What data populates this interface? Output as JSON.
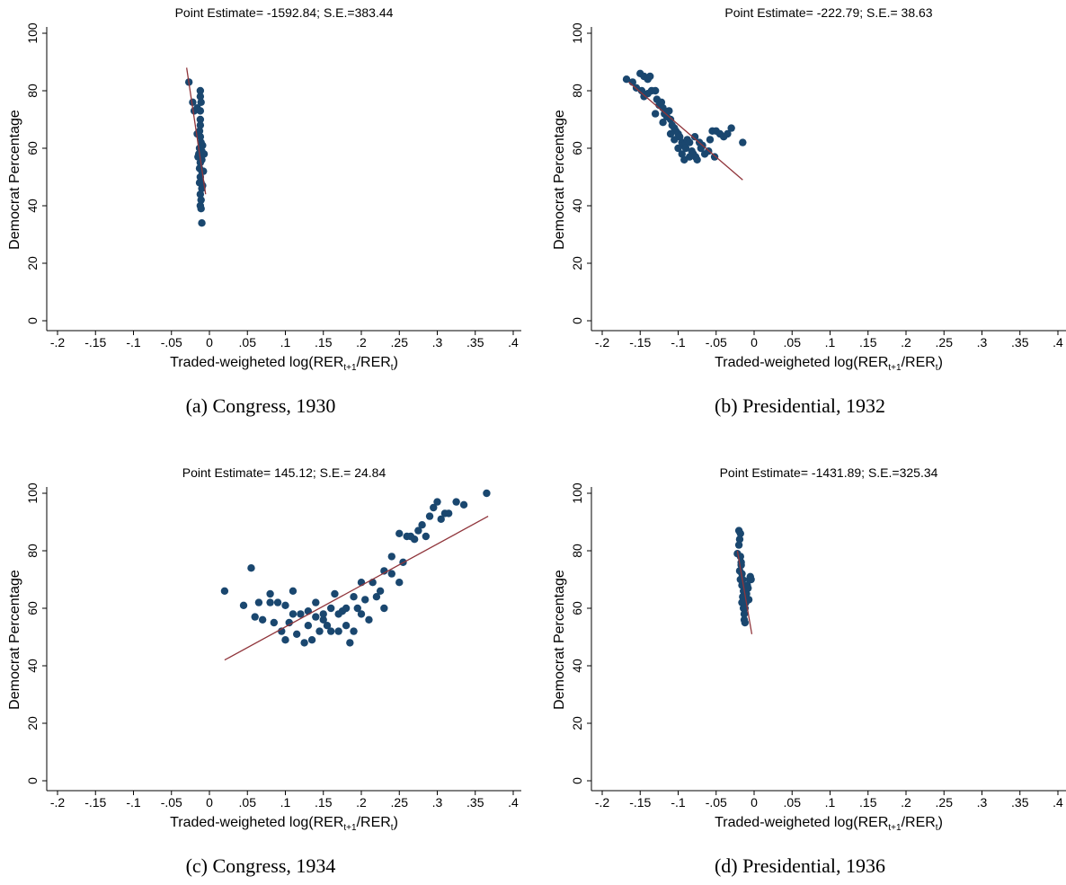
{
  "chart_data": [
    {
      "type": "scatter",
      "title": "Point Estimate= -1592.84; S.E.=383.44",
      "caption": "(a) Congress, 1930",
      "x_label": [
        "Traded-weigheted log(RER",
        "t+1",
        "/RER",
        "t",
        ")"
      ],
      "y_label": "Democrat Percentage",
      "xlim": [
        -0.2,
        0.4
      ],
      "ylim": [
        0,
        100
      ],
      "xticks": [
        {
          "value": -0.2,
          "label": "-.2"
        },
        {
          "value": -0.15,
          "label": "-.15"
        },
        {
          "value": -0.1,
          "label": "-.1"
        },
        {
          "value": -0.05,
          "label": "-.05"
        },
        0,
        {
          "value": 0.05,
          "label": ".05"
        },
        {
          "value": 0.1,
          "label": ".1"
        },
        {
          "value": 0.15,
          "label": ".15"
        },
        {
          "value": 0.2,
          "label": ".2"
        },
        {
          "value": 0.25,
          "label": ".25"
        },
        {
          "value": 0.3,
          "label": ".3"
        },
        {
          "value": 0.35,
          "label": ".35"
        },
        {
          "value": 0.4,
          "label": ".4"
        }
      ],
      "yticks": [
        0,
        20,
        40,
        60,
        80,
        100
      ],
      "color": "#1a476f",
      "fit_color": "#90353b",
      "x": [
        -0.027,
        -0.022,
        -0.02,
        -0.016,
        -0.012,
        -0.012,
        -0.011,
        -0.012,
        -0.012,
        -0.012,
        -0.013,
        -0.016,
        -0.012,
        -0.011,
        -0.013,
        -0.014,
        -0.015,
        -0.01,
        -0.012,
        -0.013,
        -0.01,
        -0.008,
        -0.007,
        -0.009,
        -0.01,
        -0.012,
        -0.011,
        -0.01,
        -0.012,
        -0.011,
        -0.012,
        -0.011,
        -0.01,
        -0.009,
        -0.013
      ],
      "y": [
        83,
        76,
        73,
        74,
        80,
        78,
        76,
        73,
        70,
        68,
        66,
        65,
        64,
        62,
        60,
        58,
        57,
        56,
        55,
        53,
        52,
        52,
        58,
        61,
        59,
        50,
        48,
        46,
        44,
        42,
        40,
        39,
        34,
        47,
        48
      ],
      "fit": {
        "x": [
          -0.03,
          -0.005
        ],
        "y": [
          88,
          44
        ]
      }
    },
    {
      "type": "scatter",
      "title": "Point Estimate= -222.79; S.E.= 38.63",
      "caption": "(b) Presidential, 1932",
      "x_label": [
        "Traded-weigheted log(RER",
        "t+1",
        "/RER",
        "t",
        ")"
      ],
      "y_label": "Democrat Percentage",
      "xlim": [
        -0.2,
        0.4
      ],
      "ylim": [
        0,
        100
      ],
      "xticks": [
        {
          "value": -0.2,
          "label": "-.2"
        },
        {
          "value": -0.15,
          "label": "-.15"
        },
        {
          "value": -0.1,
          "label": "-.1"
        },
        {
          "value": -0.05,
          "label": "-.05"
        },
        0,
        {
          "value": 0.05,
          "label": ".05"
        },
        {
          "value": 0.1,
          "label": ".1"
        },
        {
          "value": 0.15,
          "label": ".15"
        },
        {
          "value": 0.2,
          "label": ".2"
        },
        {
          "value": 0.25,
          "label": ".25"
        },
        {
          "value": 0.3,
          "label": ".3"
        },
        {
          "value": 0.35,
          "label": ".35"
        },
        {
          "value": 0.4,
          "label": ".4"
        }
      ],
      "yticks": [
        0,
        20,
        40,
        60,
        80,
        100
      ],
      "color": "#1a476f",
      "fit_color": "#90353b",
      "x": [
        -0.168,
        -0.16,
        -0.155,
        -0.15,
        -0.148,
        -0.145,
        -0.14,
        -0.137,
        -0.14,
        -0.135,
        -0.13,
        -0.128,
        -0.125,
        -0.122,
        -0.12,
        -0.118,
        -0.115,
        -0.112,
        -0.11,
        -0.108,
        -0.105,
        -0.103,
        -0.1,
        -0.098,
        -0.095,
        -0.093,
        -0.09,
        -0.088,
        -0.085,
        -0.082,
        -0.08,
        -0.077,
        -0.075,
        -0.07,
        -0.068,
        -0.065,
        -0.06,
        -0.058,
        -0.055,
        -0.05,
        -0.045,
        -0.04,
        -0.035,
        -0.03,
        -0.015,
        -0.052,
        -0.085,
        -0.095,
        -0.1,
        -0.13,
        -0.145,
        -0.12,
        -0.11,
        -0.105,
        -0.092,
        -0.078,
        -0.072
      ],
      "y": [
        84,
        83,
        81,
        86,
        80,
        85,
        84,
        85,
        79,
        80,
        80,
        77,
        75,
        76,
        74,
        72,
        71,
        73,
        70,
        68,
        67,
        66,
        65,
        64,
        62,
        61,
        60,
        63,
        62,
        59,
        58,
        57,
        56,
        60,
        61,
        58,
        59,
        63,
        66,
        66,
        65,
        64,
        65,
        67,
        62,
        57,
        57,
        58,
        60,
        72,
        78,
        69,
        65,
        63,
        56,
        64,
        62
      ],
      "fit": {
        "x": [
          -0.165,
          -0.015
        ],
        "y": [
          83,
          49
        ]
      }
    },
    {
      "type": "scatter",
      "title": "Point Estimate= 145.12; S.E.= 24.84",
      "caption": "(c) Congress, 1934",
      "x_label": [
        "Traded-weigheted log(RER",
        "t+1",
        "/RER",
        "t",
        ")"
      ],
      "y_label": "Democrat Percentage",
      "xlim": [
        -0.2,
        0.4
      ],
      "ylim": [
        0,
        100
      ],
      "xticks": [
        {
          "value": -0.2,
          "label": "-.2"
        },
        {
          "value": -0.15,
          "label": "-.15"
        },
        {
          "value": -0.1,
          "label": "-.1"
        },
        {
          "value": -0.05,
          "label": "-.05"
        },
        0,
        {
          "value": 0.05,
          "label": ".05"
        },
        {
          "value": 0.1,
          "label": ".1"
        },
        {
          "value": 0.15,
          "label": ".15"
        },
        {
          "value": 0.2,
          "label": ".2"
        },
        {
          "value": 0.25,
          "label": ".25"
        },
        {
          "value": 0.3,
          "label": ".3"
        },
        {
          "value": 0.35,
          "label": ".35"
        },
        {
          "value": 0.4,
          "label": ".4"
        }
      ],
      "yticks": [
        0,
        20,
        40,
        60,
        80,
        100
      ],
      "color": "#1a476f",
      "fit_color": "#90353b",
      "x": [
        0.02,
        0.045,
        0.055,
        0.06,
        0.065,
        0.07,
        0.08,
        0.08,
        0.085,
        0.09,
        0.095,
        0.1,
        0.1,
        0.105,
        0.11,
        0.11,
        0.115,
        0.12,
        0.125,
        0.13,
        0.13,
        0.135,
        0.14,
        0.14,
        0.145,
        0.15,
        0.15,
        0.155,
        0.16,
        0.16,
        0.165,
        0.17,
        0.17,
        0.175,
        0.18,
        0.18,
        0.185,
        0.19,
        0.19,
        0.195,
        0.2,
        0.2,
        0.205,
        0.21,
        0.215,
        0.22,
        0.225,
        0.23,
        0.23,
        0.24,
        0.24,
        0.25,
        0.25,
        0.255,
        0.26,
        0.265,
        0.27,
        0.275,
        0.28,
        0.285,
        0.29,
        0.295,
        0.3,
        0.305,
        0.31,
        0.315,
        0.325,
        0.335,
        0.365
      ],
      "y": [
        66,
        61,
        74,
        57,
        62,
        56,
        65,
        62,
        55,
        62,
        52,
        49,
        61,
        55,
        58,
        66,
        51,
        58,
        48,
        54,
        59,
        49,
        57,
        62,
        52,
        56,
        58,
        54,
        60,
        52,
        65,
        58,
        52,
        59,
        54,
        60,
        48,
        52,
        64,
        60,
        58,
        69,
        63,
        56,
        69,
        64,
        66,
        60,
        73,
        72,
        78,
        69,
        86,
        76,
        85,
        85,
        84,
        87,
        89,
        85,
        92,
        95,
        97,
        91,
        93,
        93,
        97,
        96,
        100
      ],
      "fit": {
        "x": [
          0.02,
          0.367
        ],
        "y": [
          42,
          92
        ]
      }
    },
    {
      "type": "scatter",
      "title": "Point Estimate= -1431.89; S.E.=325.34",
      "caption": "(d) Presidential, 1936",
      "x_label": [
        "Traded-weigheted log(RER",
        "t+1",
        "/RER",
        "t",
        ")"
      ],
      "y_label": "Democrat Percentage",
      "xlim": [
        -0.2,
        0.4
      ],
      "ylim": [
        0,
        100
      ],
      "xticks": [
        {
          "value": -0.2,
          "label": "-.2"
        },
        {
          "value": -0.15,
          "label": "-.15"
        },
        {
          "value": -0.1,
          "label": "-.1"
        },
        {
          "value": -0.05,
          "label": "-.05"
        },
        0,
        {
          "value": 0.05,
          "label": ".05"
        },
        {
          "value": 0.1,
          "label": ".1"
        },
        {
          "value": 0.15,
          "label": ".15"
        },
        {
          "value": 0.2,
          "label": ".2"
        },
        {
          "value": 0.25,
          "label": ".25"
        },
        {
          "value": 0.3,
          "label": ".3"
        },
        {
          "value": 0.35,
          "label": ".35"
        },
        {
          "value": 0.4,
          "label": ".4"
        }
      ],
      "yticks": [
        0,
        20,
        40,
        60,
        80,
        100
      ],
      "color": "#1a476f",
      "fit_color": "#90353b",
      "x": [
        -0.02,
        -0.018,
        -0.019,
        -0.02,
        -0.022,
        -0.018,
        -0.017,
        -0.019,
        -0.016,
        -0.015,
        -0.016,
        -0.014,
        -0.015,
        -0.016,
        -0.014,
        -0.013,
        -0.013,
        -0.012,
        -0.01,
        -0.008,
        -0.006,
        -0.005,
        -0.004,
        -0.007,
        -0.009,
        -0.011,
        -0.012,
        -0.017,
        -0.018
      ],
      "y": [
        87,
        86,
        84,
        82,
        79,
        78,
        75,
        73,
        72,
        70,
        68,
        66,
        64,
        62,
        60,
        58,
        56,
        55,
        65,
        67,
        70,
        71,
        70,
        63,
        68,
        62,
        60,
        76,
        70
      ],
      "fit": {
        "x": [
          -0.022,
          -0.003
        ],
        "y": [
          80,
          51
        ]
      }
    }
  ]
}
